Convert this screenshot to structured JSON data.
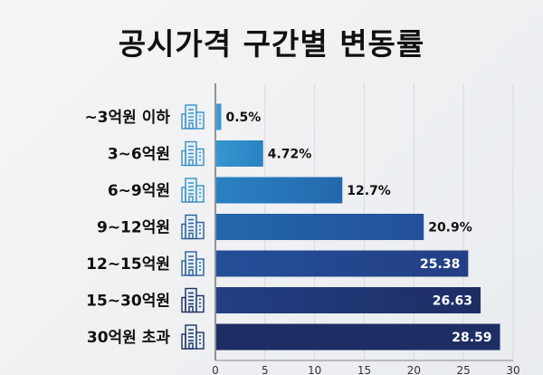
{
  "chart_data": {
    "type": "bar",
    "orientation": "horizontal",
    "title": "공시가격 구간별 변동률",
    "categories": [
      "~3억원 이하",
      "3~6억원",
      "6~9억원",
      "9~12억원",
      "12~15억원",
      "15~30억원",
      "30억원 초과"
    ],
    "values": [
      0.5,
      4.72,
      12.7,
      20.9,
      25.38,
      26.63,
      28.59
    ],
    "value_labels": [
      "0.5%",
      "4.72%",
      "12.7%",
      "20.9%",
      "25.38",
      "26.63",
      "28.59"
    ],
    "xlim": [
      0,
      30
    ],
    "xticks": [
      "0",
      "5",
      "10",
      "15",
      "20",
      "25",
      "30"
    ],
    "grid": true,
    "icon": "building-icon",
    "colors": [
      "#3fa3da",
      "#3496d0",
      "#2a82c2",
      "#2368ad",
      "#234f98",
      "#233f85",
      "#1e2d63"
    ]
  }
}
